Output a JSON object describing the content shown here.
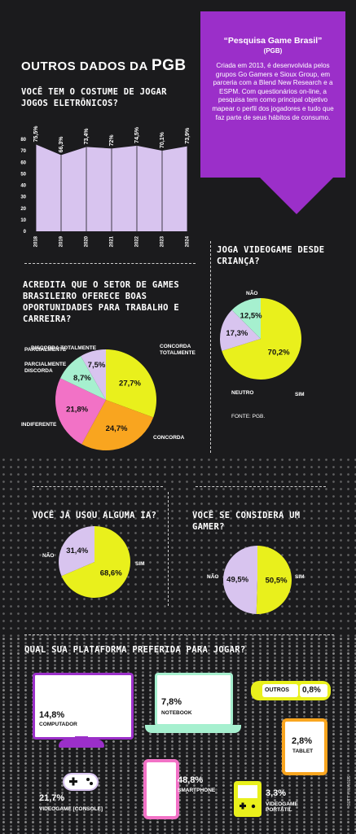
{
  "section_title_prefix": "OUTROS DADOS DA",
  "section_title_brand": "PGB",
  "info_box": {
    "title": "“Pesquisa Game Brasil”",
    "subtitle": "(PGB)",
    "text": "Criada em 2013, é desenvolvida pelos grupos Go Gamers e Sioux Group, em parceria com a Blend New Research e a ESPM. Com questionários on-line, a pesquisa tem como principal objetivo mapear o perfil dos jogadores e tudo que faz parte de seus hábitos de consumo."
  },
  "colors": {
    "purple": "#9b2fc9",
    "lilac": "#d8c4ef",
    "yellow": "#e9f01c",
    "mint": "#a6f0cf",
    "pink": "#f272c6",
    "orange": "#f9a51f"
  },
  "source": "FONTE: PGB.",
  "credit": "GETTY IMAGES",
  "chart_data": [
    {
      "type": "area",
      "title": "VOCÊ TEM O COSTUME DE JOGAR JOGOS ELETRÔNICOS?",
      "x": [
        "2018",
        "2019",
        "2020",
        "2021",
        "2022",
        "2023",
        "2024"
      ],
      "values": [
        75.5,
        66.3,
        73.4,
        72,
        74.5,
        70.1,
        73.9
      ],
      "value_labels": [
        "75,5%",
        "66,3%",
        "73,4%",
        "72%",
        "74,5%",
        "70,1%",
        "73,9%"
      ],
      "y_ticks": [
        "0",
        "10",
        "20",
        "30",
        "40",
        "50",
        "60",
        "70",
        "80"
      ],
      "ylim": [
        0,
        85
      ]
    },
    {
      "type": "pie",
      "title": "JOGA VIDEOGAME DESDE CRIANÇA?",
      "slices": [
        {
          "label": "SIM",
          "value": 70.2,
          "text": "70,2%",
          "color": "#e9f01c"
        },
        {
          "label": "NEUTRO",
          "value": 17.3,
          "text": "17,3%",
          "color": "#d8c4ef"
        },
        {
          "label": "NÃO",
          "value": 12.5,
          "text": "12,5%",
          "color": "#a6f0cf"
        }
      ]
    },
    {
      "type": "pie",
      "title": "ACREDITA QUE O SETOR DE GAMES BRASILEIRO OFERECE BOAS OPORTUNIDADES PARA TRABALHO E CARREIRA?",
      "slices": [
        {
          "label": "CONCORDA TOTALMENTE",
          "value": 27.7,
          "text": "27,7%",
          "color": "#e9f01c"
        },
        {
          "label": "CONCORDA PARCIALMENTE",
          "value": 24.7,
          "text": "24,7%",
          "color": "#f9a51f"
        },
        {
          "label": "INDIFERENTE",
          "value": 21.8,
          "text": "21,8%",
          "color": "#f272c6"
        },
        {
          "label": "DISCORDA PARCIALMENTE",
          "value": 8.7,
          "text": "8,7%",
          "color": "#a6f0cf"
        },
        {
          "label": "DISCORDA TOTALMENTE",
          "value": 7.5,
          "text": "7,5%",
          "color": "#d8c4ef"
        }
      ]
    },
    {
      "type": "pie",
      "title": "VOCÊ JÁ USOU ALGUMA IA?",
      "slices": [
        {
          "label": "SIM",
          "value": 68.6,
          "text": "68,6%",
          "color": "#e9f01c"
        },
        {
          "label": "NÃO",
          "value": 31.4,
          "text": "31,4%",
          "color": "#d8c4ef"
        }
      ]
    },
    {
      "type": "pie",
      "title": "VOCÊ SE CONSIDERA UM GAMER?",
      "slices": [
        {
          "label": "SIM",
          "value": 50.5,
          "text": "50,5%",
          "color": "#e9f01c"
        },
        {
          "label": "NÃO",
          "value": 49.5,
          "text": "49,5%",
          "color": "#d8c4ef"
        }
      ]
    },
    {
      "type": "table",
      "title": "QUAL SUA PLATAFORMA PREFERIDA PARA JOGAR?",
      "items": [
        {
          "label": "COMPUTADOR",
          "value": 14.8,
          "text": "14,8%",
          "icon": "monitor-icon"
        },
        {
          "label": "NOTEBOOK",
          "value": 7.8,
          "text": "7,8%",
          "icon": "laptop-icon"
        },
        {
          "label": "OUTROS",
          "value": 0.8,
          "text": "0,8%",
          "icon": "handheld-icon"
        },
        {
          "label": "TABLET",
          "value": 2.8,
          "text": "2,8%",
          "icon": "tablet-icon"
        },
        {
          "label": "VIDEOGAME [CONSOLE]",
          "value": 21.7,
          "text": "21,7%",
          "icon": "gamepad-icon"
        },
        {
          "label": "SMARTPHONE",
          "value": 48.8,
          "text": "48,8%",
          "icon": "smartphone-icon"
        },
        {
          "label": "VIDEOGAME PORTÁTIL",
          "value": 3.3,
          "text": "3,3%",
          "icon": "gameboy-icon"
        }
      ]
    }
  ]
}
